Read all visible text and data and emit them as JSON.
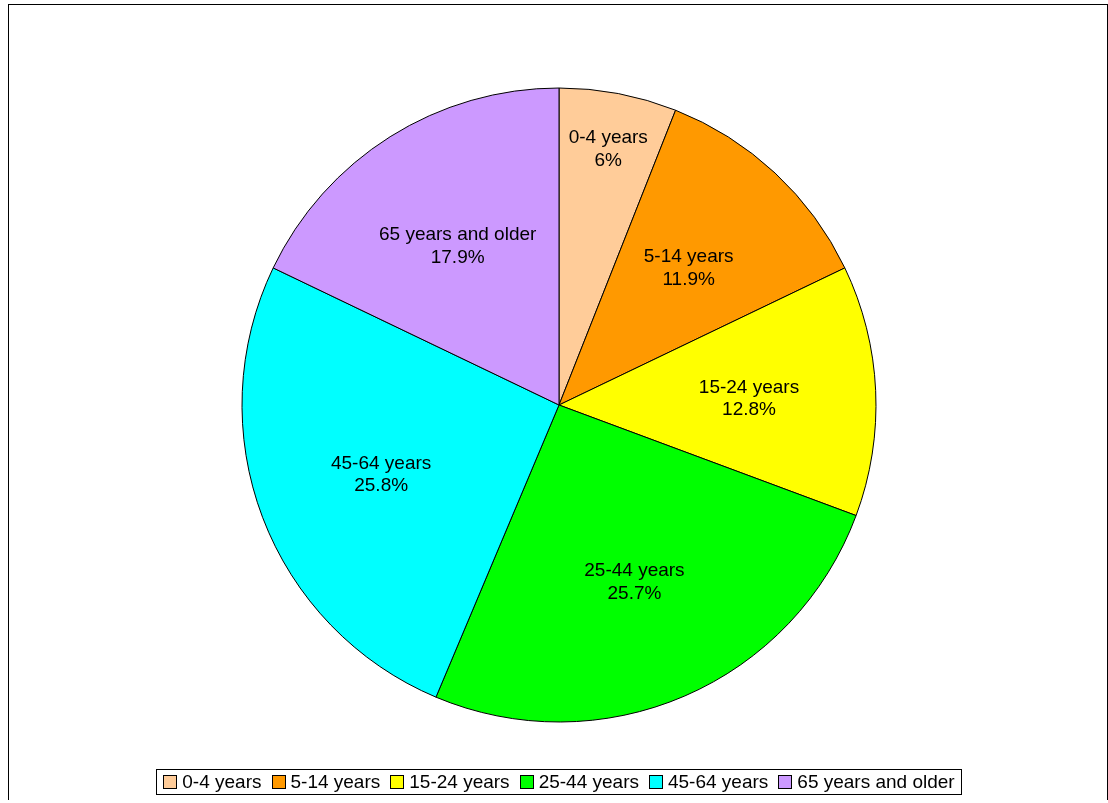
{
  "chart_data": {
    "type": "pie",
    "categories": [
      "0-4 years",
      "5-14 years",
      "15-24 years",
      "25-44 years",
      "45-64 years",
      "65 years and older"
    ],
    "values": [
      6,
      11.9,
      12.8,
      25.7,
      25.8,
      17.9
    ],
    "value_labels": [
      "6%",
      "11.9%",
      "12.8%",
      "25.7%",
      "25.8%",
      "17.9%"
    ],
    "colors": [
      "#ffcc99",
      "#ff9900",
      "#ffff00",
      "#00ff00",
      "#00ffff",
      "#cc99ff"
    ],
    "legend": "bottom"
  }
}
